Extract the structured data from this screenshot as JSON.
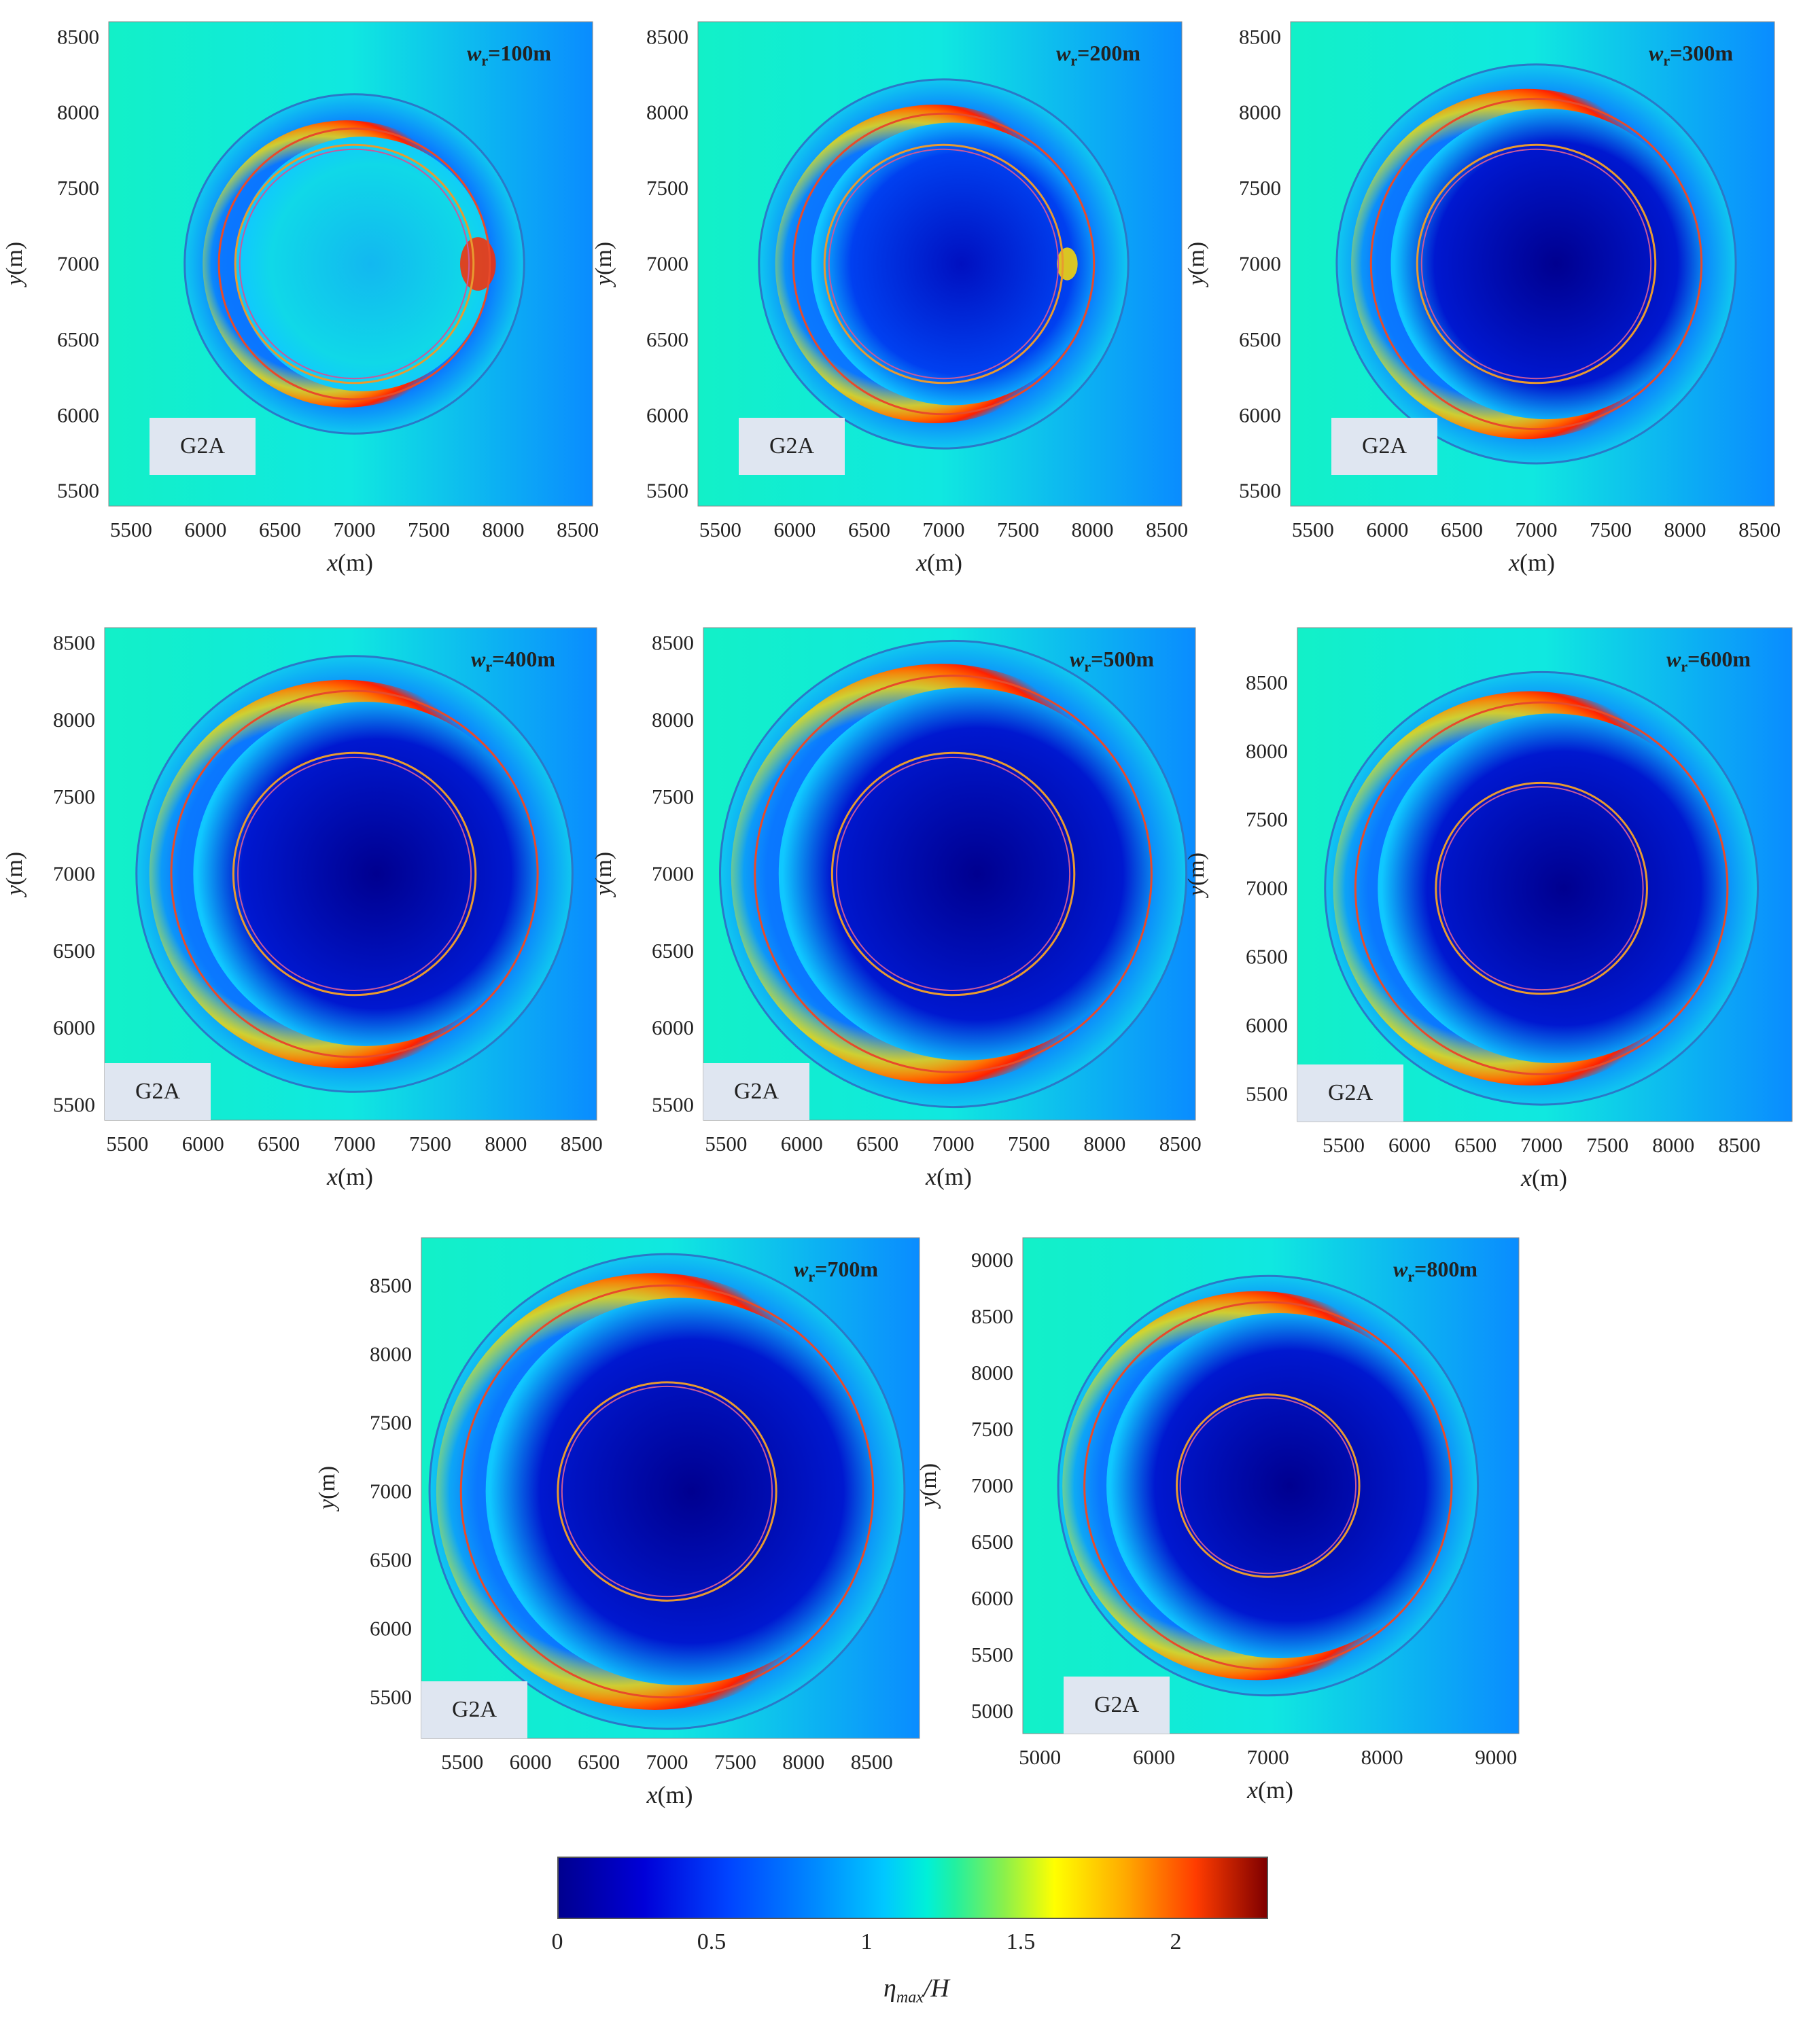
{
  "colorbar": {
    "label_main": "η",
    "label_sub": "max",
    "label_tail": "/H",
    "ticks": [
      "0",
      "0.5",
      "1",
      "1.5",
      "2"
    ],
    "range": [
      0,
      2.3
    ]
  },
  "chart_data": [
    {
      "type": "heatmap",
      "panel": 1,
      "tag": "G2A",
      "wr_prefix": "w",
      "wr_sub": "r",
      "wr_value": "=100m",
      "xlabel_var": "x",
      "xlabel_unit": "(m)",
      "ylabel_var": "y",
      "ylabel_unit": "(m)",
      "xlim": [
        5350,
        8600
      ],
      "ylim": [
        5400,
        8600
      ],
      "xticks": [
        "5500",
        "6000",
        "6500",
        "7000",
        "7500",
        "8000",
        "8500"
      ],
      "yticks": [
        "5500",
        "6000",
        "6500",
        "7000",
        "7500",
        "8000",
        "8500"
      ],
      "rings": {
        "outer_blue": 1140,
        "red": 910,
        "inner_orange_outer": 800,
        "inner_orange_inner": 770
      },
      "center": [
        7000,
        7000
      ]
    },
    {
      "type": "heatmap",
      "panel": 2,
      "tag": "G2A",
      "wr_prefix": "w",
      "wr_sub": "r",
      "wr_value": "=200m",
      "xlabel_var": "x",
      "xlabel_unit": "(m)",
      "ylabel_var": "y",
      "ylabel_unit": "(m)",
      "xlim": [
        5350,
        8600
      ],
      "ylim": [
        5400,
        8600
      ],
      "xticks": [
        "5500",
        "6000",
        "6500",
        "7000",
        "7500",
        "8000",
        "8500"
      ],
      "yticks": [
        "5500",
        "6000",
        "6500",
        "7000",
        "7500",
        "8000",
        "8500"
      ],
      "rings": {
        "outer_blue": 1240,
        "red": 1010,
        "inner_orange_outer": 800,
        "inner_orange_inner": 770
      },
      "center": [
        7000,
        7000
      ]
    },
    {
      "type": "heatmap",
      "panel": 3,
      "tag": "G2A",
      "wr_prefix": "w",
      "wr_sub": "r",
      "wr_value": "=300m",
      "xlabel_var": "x",
      "xlabel_unit": "(m)",
      "ylabel_var": "y",
      "ylabel_unit": "(m)",
      "xlim": [
        5350,
        8600
      ],
      "ylim": [
        5400,
        8600
      ],
      "xticks": [
        "5500",
        "6000",
        "6500",
        "7000",
        "7500",
        "8000",
        "8500"
      ],
      "yticks": [
        "5500",
        "6000",
        "6500",
        "7000",
        "7500",
        "8000",
        "8500"
      ],
      "rings": {
        "outer_blue": 1340,
        "red": 1110,
        "inner_orange_outer": 800,
        "inner_orange_inner": 770
      },
      "center": [
        7000,
        7000
      ]
    },
    {
      "type": "heatmap",
      "panel": 4,
      "tag": "G2A",
      "wr_prefix": "w",
      "wr_sub": "r",
      "wr_value": "=400m",
      "xlabel_var": "x",
      "xlabel_unit": "(m)",
      "ylabel_var": "y",
      "ylabel_unit": "(m)",
      "xlim": [
        5350,
        8600
      ],
      "ylim": [
        5400,
        8600
      ],
      "xticks": [
        "5500",
        "6000",
        "6500",
        "7000",
        "7500",
        "8000",
        "8500"
      ],
      "yticks": [
        "5500",
        "6000",
        "6500",
        "7000",
        "7500",
        "8000",
        "8500"
      ],
      "rings": {
        "outer_blue": 1440,
        "red": 1210,
        "inner_orange_outer": 800,
        "inner_orange_inner": 770
      },
      "center": [
        7000,
        7000
      ]
    },
    {
      "type": "heatmap",
      "panel": 5,
      "tag": "G2A",
      "wr_prefix": "w",
      "wr_sub": "r",
      "wr_value": "=500m",
      "xlabel_var": "x",
      "xlabel_unit": "(m)",
      "ylabel_var": "y",
      "ylabel_unit": "(m)",
      "xlim": [
        5350,
        8600
      ],
      "ylim": [
        5400,
        8600
      ],
      "xticks": [
        "5500",
        "6000",
        "6500",
        "7000",
        "7500",
        "8000",
        "8500"
      ],
      "yticks": [
        "5500",
        "6000",
        "6500",
        "7000",
        "7500",
        "8000",
        "8500"
      ],
      "rings": {
        "outer_blue": 1540,
        "red": 1310,
        "inner_orange_outer": 800,
        "inner_orange_inner": 770
      },
      "center": [
        7000,
        7000
      ]
    },
    {
      "type": "heatmap",
      "panel": 6,
      "tag": "G2A",
      "wr_prefix": "w",
      "wr_sub": "r",
      "wr_value": "=600m",
      "xlabel_var": "x",
      "xlabel_unit": "(m)",
      "ylabel_var": "y",
      "ylabel_unit": "(m)",
      "xlim": [
        5150,
        8900
      ],
      "ylim": [
        5300,
        8900
      ],
      "xticks": [
        "5500",
        "6000",
        "6500",
        "7000",
        "7500",
        "8000",
        "8500"
      ],
      "yticks": [
        "5500",
        "6000",
        "6500",
        "7000",
        "7500",
        "8000",
        "8500"
      ],
      "rings": {
        "outer_blue": 1640,
        "red": 1410,
        "inner_orange_outer": 800,
        "inner_orange_inner": 770
      },
      "center": [
        7000,
        7000
      ]
    },
    {
      "type": "heatmap",
      "panel": 7,
      "tag": "G2A",
      "wr_prefix": "w",
      "wr_sub": "r",
      "wr_value": "=700m",
      "xlabel_var": "x",
      "xlabel_unit": "(m)",
      "ylabel_var": "y",
      "ylabel_unit": "(m)",
      "xlim": [
        5200,
        8850
      ],
      "ylim": [
        5200,
        8850
      ],
      "xticks": [
        "5500",
        "6000",
        "6500",
        "7000",
        "7500",
        "8000",
        "8500"
      ],
      "yticks": [
        "5500",
        "6000",
        "6500",
        "7000",
        "7500",
        "8000",
        "8500"
      ],
      "rings": {
        "outer_blue": 1740,
        "red": 1510,
        "inner_orange_outer": 800,
        "inner_orange_inner": 770
      },
      "center": [
        7000,
        7000
      ]
    },
    {
      "type": "heatmap",
      "panel": 8,
      "tag": "G2A",
      "wr_prefix": "w",
      "wr_sub": "r",
      "wr_value": "=800m",
      "xlabel_var": "x",
      "xlabel_unit": "(m)",
      "ylabel_var": "y",
      "ylabel_unit": "(m)",
      "xlim": [
        4850,
        9200
      ],
      "ylim": [
        4800,
        9200
      ],
      "xticks": [
        "5000",
        "6000",
        "7000",
        "8000",
        "9000"
      ],
      "yticks": [
        "5000",
        "5500",
        "6000",
        "6500",
        "7000",
        "7500",
        "8000",
        "8500",
        "9000"
      ],
      "rings": {
        "outer_blue": 1840,
        "red": 1610,
        "inner_orange_outer": 800,
        "inner_orange_inner": 770
      },
      "center": [
        7000,
        7000
      ]
    }
  ]
}
